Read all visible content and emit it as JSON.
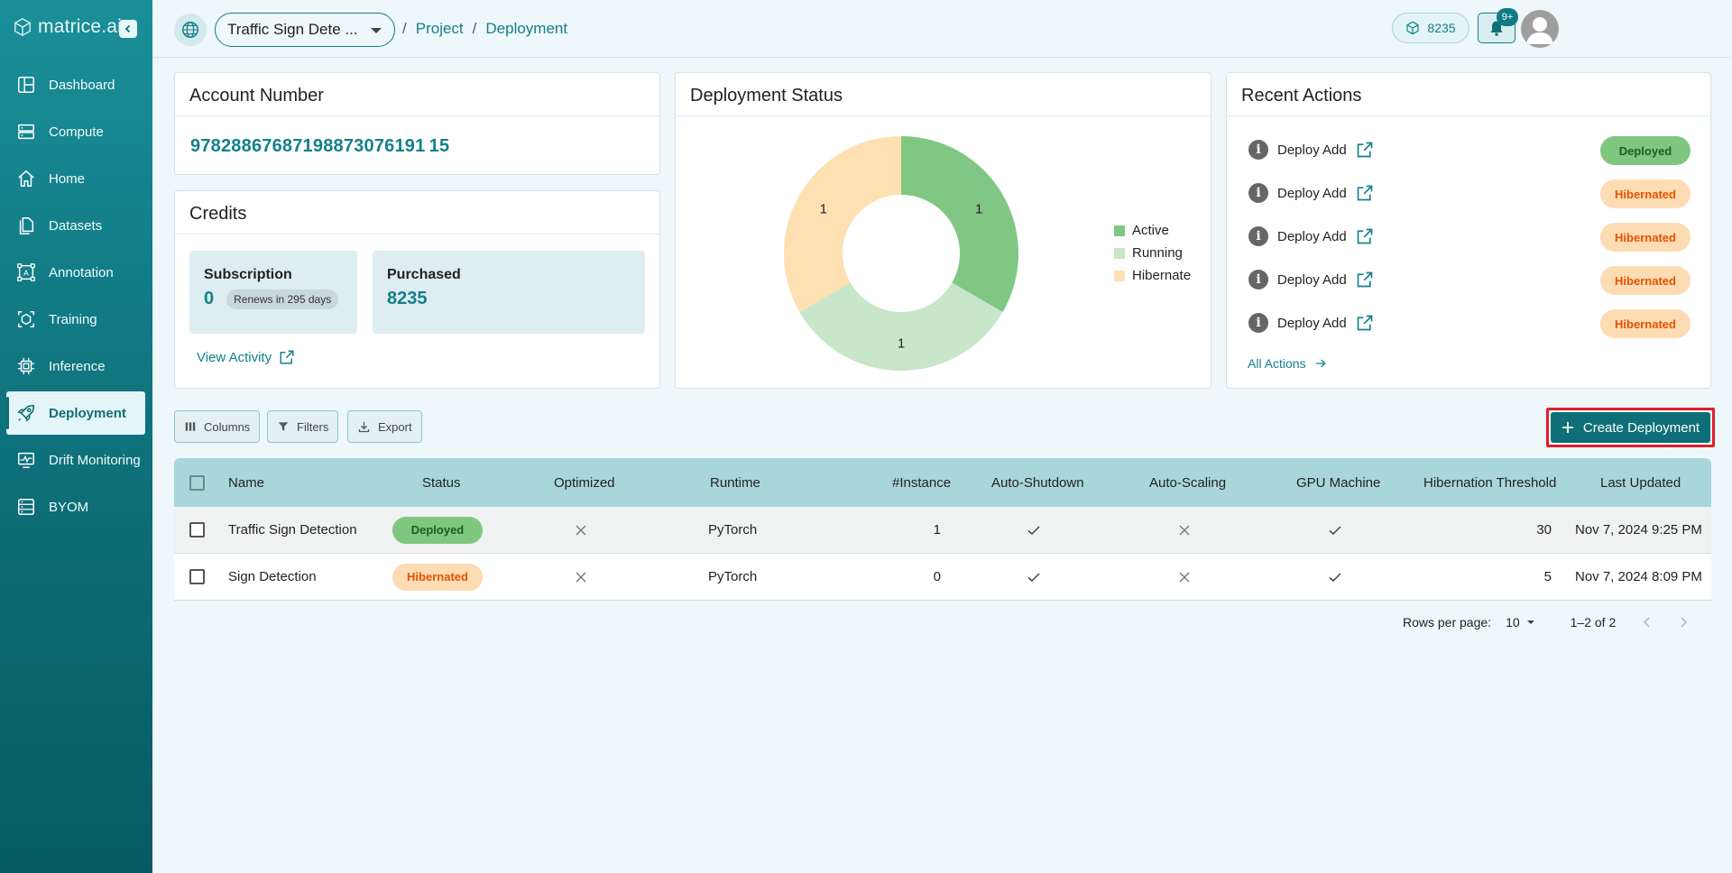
{
  "brand": {
    "name": "matrice.ai"
  },
  "sidebar": {
    "items": [
      {
        "label": "Dashboard",
        "icon": "dashboard-icon"
      },
      {
        "label": "Compute",
        "icon": "server-icon"
      },
      {
        "label": "Home",
        "icon": "home-icon"
      },
      {
        "label": "Datasets",
        "icon": "file-icon"
      },
      {
        "label": "Annotation",
        "icon": "annotation-icon"
      },
      {
        "label": "Training",
        "icon": "training-icon"
      },
      {
        "label": "Inference",
        "icon": "chip-icon"
      },
      {
        "label": "Deployment",
        "icon": "rocket-icon",
        "active": true
      },
      {
        "label": "Drift Monitoring",
        "icon": "monitor-icon"
      },
      {
        "label": "BYOM",
        "icon": "byom-icon"
      }
    ]
  },
  "topbar": {
    "project": "Traffic Sign Dete ...",
    "breadcrumb": {
      "sep": "/",
      "project": "Project",
      "page": "Deployment"
    },
    "credits": "8235",
    "notifications": "9+"
  },
  "account": {
    "title": "Account Number",
    "number": "97828867687198873076191 15"
  },
  "credits": {
    "title": "Credits",
    "subscription_label": "Subscription",
    "subscription_value": "0",
    "renew_text": "Renews in 295 days",
    "purchased_label": "Purchased",
    "purchased_value": "8235",
    "view_activity": "View Activity"
  },
  "deployment_status": {
    "title": "Deployment Status",
    "legend": [
      "Active",
      "Running",
      "Hibernate"
    ]
  },
  "chart_data": {
    "type": "pie",
    "categories": [
      "Active",
      "Running",
      "Hibernate"
    ],
    "values": [
      1,
      1,
      1
    ],
    "colors": [
      "#81c784",
      "#c8e6c9",
      "#ffe0b2"
    ],
    "title": "Deployment Status",
    "legend_position": "right"
  },
  "recent_actions": {
    "title": "Recent Actions",
    "items": [
      {
        "text": "Deploy Add",
        "status": "Deployed"
      },
      {
        "text": "Deploy Add",
        "status": "Hibernated"
      },
      {
        "text": "Deploy Add",
        "status": "Hibernated"
      },
      {
        "text": "Deploy Add",
        "status": "Hibernated"
      },
      {
        "text": "Deploy Add",
        "status": "Hibernated"
      }
    ],
    "all_actions": "All Actions"
  },
  "toolbar": {
    "columns": "Columns",
    "filters": "Filters",
    "export": "Export",
    "create": "Create Deployment"
  },
  "table": {
    "headers": [
      "Name",
      "Status",
      "Optimized",
      "Runtime",
      "#Instance",
      "Auto-Shutdown",
      "Auto-Scaling",
      "GPU Machine",
      "Hibernation Threshold",
      "Last Updated"
    ],
    "rows": [
      {
        "name": "Traffic Sign Detection",
        "status": "Deployed",
        "optimized": false,
        "runtime": "PyTorch",
        "instance": "1",
        "auto_shutdown": true,
        "auto_scaling": false,
        "gpu": true,
        "threshold": "30",
        "updated": "Nov 7, 2024 9:25 PM"
      },
      {
        "name": "Sign Detection",
        "status": "Hibernated",
        "optimized": false,
        "runtime": "PyTorch",
        "instance": "0",
        "auto_shutdown": true,
        "auto_scaling": false,
        "gpu": true,
        "threshold": "5",
        "updated": "Nov 7, 2024 8:09 PM"
      }
    ]
  },
  "pagination": {
    "rows_per_page_label": "Rows per page:",
    "rows_per_page": "10",
    "range": "1–2 of 2"
  },
  "colors": {
    "accent": "#14808b",
    "sidebar": "#0d6f79",
    "deployed": "#7fc77f",
    "hibernated": "#fddcb3",
    "highlight": "#e11d2a"
  }
}
